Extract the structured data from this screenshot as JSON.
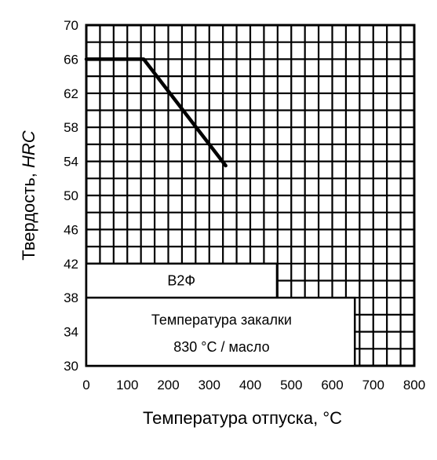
{
  "chart_data": {
    "type": "line",
    "title": "",
    "xlabel": "Температура отпуска, °С",
    "ylabel_prefix": "Твердость, ",
    "ylabel_italic": "HRC",
    "xlim": [
      0,
      800
    ],
    "ylim": [
      30,
      70
    ],
    "x_ticks": [
      "0",
      "100",
      "200",
      "300",
      "400",
      "500",
      "600",
      "700",
      "800"
    ],
    "y_ticks": [
      "30",
      "34",
      "38",
      "42",
      "46",
      "50",
      "54",
      "58",
      "62",
      "66",
      "70"
    ],
    "grid": true,
    "series": [
      {
        "name": "В2Ф",
        "x": [
          0,
          140,
          340
        ],
        "y": [
          66,
          66,
          53.5
        ]
      }
    ],
    "annotations": {
      "steel_grade": "В2Ф",
      "quench_line1": "Температура закалки",
      "quench_line2": "830 °С / масло"
    }
  }
}
